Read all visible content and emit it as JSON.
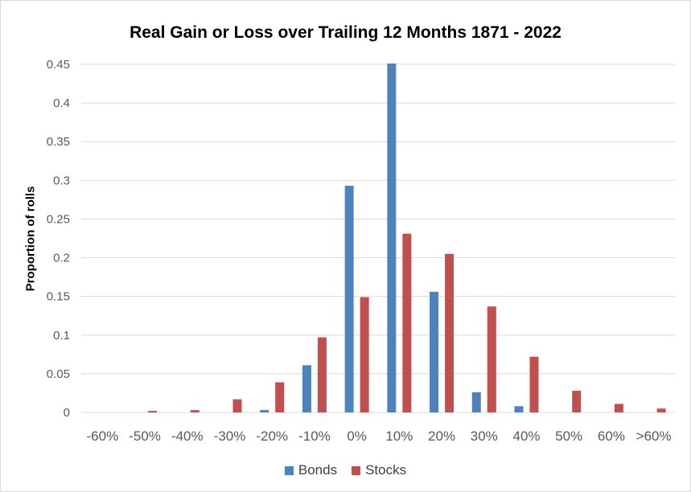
{
  "chart_data": {
    "type": "bar",
    "title": "Real Gain or Loss over Trailing 12 Months 1871 - 2022",
    "xlabel": "",
    "ylabel": "Proportion of rolls",
    "ylim": [
      0,
      0.45
    ],
    "yticks": [
      "0",
      "0.05",
      "0.1",
      "0.15",
      "0.2",
      "0.25",
      "0.3",
      "0.35",
      "0.4",
      "0.45"
    ],
    "categories": [
      "-60%",
      "-50%",
      "-40%",
      "-30%",
      "-20%",
      "-10%",
      "0%",
      "10%",
      "20%",
      "30%",
      "40%",
      "50%",
      "60%",
      ">60%"
    ],
    "series": [
      {
        "name": "Bonds",
        "color": "#4f81bd",
        "values": [
          0,
          0,
          0,
          0,
          0.003,
          0.061,
          0.293,
          0.451,
          0.156,
          0.026,
          0.008,
          0,
          0,
          0
        ]
      },
      {
        "name": "Stocks",
        "color": "#c0504d",
        "values": [
          0,
          0.002,
          0.003,
          0.017,
          0.039,
          0.097,
          0.149,
          0.231,
          0.205,
          0.137,
          0.072,
          0.028,
          0.011,
          0.005
        ]
      }
    ],
    "grid": true,
    "legend_position": "bottom"
  }
}
